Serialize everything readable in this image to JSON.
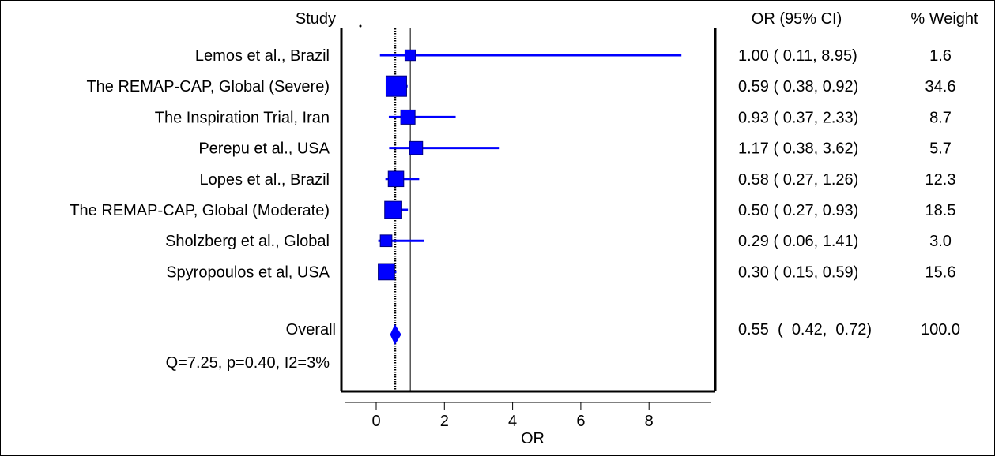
{
  "chart_data": {
    "type": "forest",
    "title": "",
    "xlabel": "OR",
    "ylabel": "",
    "xlim": [
      -1,
      10
    ],
    "x_ticks": [
      0,
      2,
      4,
      6,
      8
    ],
    "null_line": 1,
    "pooled_line": 0.55,
    "headers": {
      "study": "Study",
      "ci": "OR (95% CI)",
      "weight": "% Weight"
    },
    "studies": [
      {
        "label": "Lemos et al., Brazil",
        "or": 1.0,
        "lo": 0.11,
        "hi": 8.95,
        "ci_text": "1.00  (  0.11,  8.95)",
        "weight": 1.6,
        "weight_text": "1.6"
      },
      {
        "label": "The REMAP-CAP, Global (Severe)",
        "or": 0.59,
        "lo": 0.38,
        "hi": 0.92,
        "ci_text": "0.59  (  0.38,  0.92)",
        "weight": 34.6,
        "weight_text": "34.6"
      },
      {
        "label": "The Inspiration Trial, Iran",
        "or": 0.93,
        "lo": 0.37,
        "hi": 2.33,
        "ci_text": "0.93  (  0.37,  2.33)",
        "weight": 8.7,
        "weight_text": "8.7"
      },
      {
        "label": "Perepu et al., USA",
        "or": 1.17,
        "lo": 0.38,
        "hi": 3.62,
        "ci_text": "1.17  (  0.38,  3.62)",
        "weight": 5.7,
        "weight_text": "5.7"
      },
      {
        "label": "Lopes et al., Brazil",
        "or": 0.58,
        "lo": 0.27,
        "hi": 1.26,
        "ci_text": "0.58  (  0.27,  1.26)",
        "weight": 12.3,
        "weight_text": "12.3"
      },
      {
        "label": "The REMAP-CAP, Global (Moderate)",
        "or": 0.5,
        "lo": 0.27,
        "hi": 0.93,
        "ci_text": "0.50  (  0.27,  0.93)",
        "weight": 18.5,
        "weight_text": "18.5"
      },
      {
        "label": "Sholzberg et al., Global",
        "or": 0.29,
        "lo": 0.06,
        "hi": 1.41,
        "ci_text": "0.29  (  0.06,  1.41)",
        "weight": 3.0,
        "weight_text": "3.0"
      },
      {
        "label": "Spyropoulos et al, USA",
        "or": 0.3,
        "lo": 0.15,
        "hi": 0.59,
        "ci_text": "0.30  (  0.15,  0.59)",
        "weight": 15.6,
        "weight_text": "15.6"
      }
    ],
    "overall": {
      "label": "Overall",
      "or": 0.55,
      "lo": 0.42,
      "hi": 0.72,
      "ci_text": "0.55  (  0.42,  0.72)",
      "weight": 100.0,
      "weight_text": "100.0"
    },
    "heterogeneity": "Q=7.25, p=0.40, I2=3%",
    "colors": {
      "ci_line": "#0000ff",
      "box_fill": "#0000ff",
      "box_stroke": "#000080",
      "diamond": "#0000ff",
      "axis": "#000000"
    }
  }
}
